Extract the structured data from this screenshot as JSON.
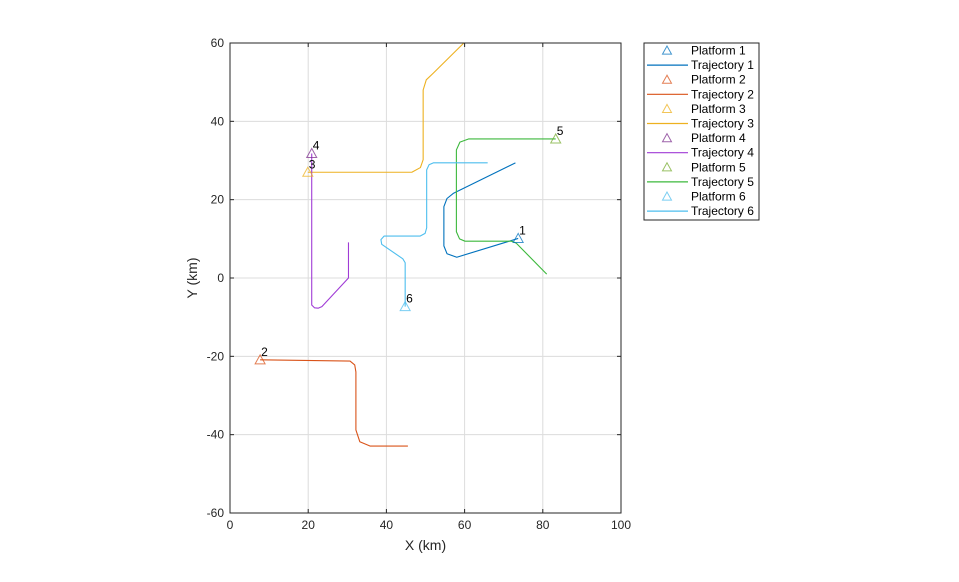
{
  "chart_data": {
    "type": "line",
    "title": "",
    "xlabel": "X (km)",
    "ylabel": "Y (km)",
    "xlim": [
      0,
      100
    ],
    "ylim": [
      -60,
      60
    ],
    "xticks": [
      0,
      20,
      40,
      60,
      80,
      100
    ],
    "yticks": [
      -60,
      -40,
      -20,
      0,
      20,
      40,
      60
    ],
    "grid": true,
    "legend_placement": "outside-top-right",
    "platforms": [
      {
        "name": "Platform 1",
        "label": "1",
        "x": 73.7,
        "y": 10.1,
        "color": "#0072BD"
      },
      {
        "name": "Platform 2",
        "label": "2",
        "x": 7.7,
        "y": -20.9,
        "color": "#D95319"
      },
      {
        "name": "Platform 3",
        "label": "3",
        "x": 19.9,
        "y": 27.0,
        "color": "#EDB120"
      },
      {
        "name": "Platform 4",
        "label": "4",
        "x": 20.9,
        "y": 31.8,
        "color": "#7E2F8E"
      },
      {
        "name": "Platform 5",
        "label": "5",
        "x": 83.3,
        "y": 35.5,
        "color": "#77AC30"
      },
      {
        "name": "Platform 6",
        "label": "6",
        "x": 44.8,
        "y": -7.3,
        "color": "#4DBEEE"
      }
    ],
    "series": [
      {
        "name": "Trajectory 1",
        "color": "#0072BD",
        "points": [
          [
            73.7,
            10.1
          ],
          [
            58,
            5.3
          ],
          [
            55.5,
            6.2
          ],
          [
            54.7,
            8.2
          ],
          [
            54.7,
            18.2
          ],
          [
            55.5,
            20.3
          ],
          [
            57.1,
            21.6
          ],
          [
            73,
            29.4
          ]
        ]
      },
      {
        "name": "Trajectory 2",
        "color": "#D95319",
        "points": [
          [
            7.7,
            -20.9
          ],
          [
            30.7,
            -21.2
          ],
          [
            31.9,
            -22.2
          ],
          [
            32.2,
            -24
          ],
          [
            32.2,
            -38.8
          ],
          [
            33.2,
            -41.8
          ],
          [
            35.8,
            -42.9
          ],
          [
            45.5,
            -42.9
          ]
        ]
      },
      {
        "name": "Trajectory 3",
        "color": "#EDB120",
        "points": [
          [
            19.9,
            27
          ],
          [
            46.5,
            27
          ],
          [
            48.7,
            28.2
          ],
          [
            49.4,
            30.2
          ],
          [
            49.4,
            48
          ],
          [
            50.2,
            50.6
          ],
          [
            52,
            52.3
          ],
          [
            59.8,
            60
          ]
        ]
      },
      {
        "name": "Trajectory 4",
        "color": "#A03CD6",
        "points": [
          [
            20.9,
            31.8
          ],
          [
            20.9,
            -6.9
          ],
          [
            21.6,
            -7.6
          ],
          [
            22.6,
            -7.7
          ],
          [
            23.5,
            -7.3
          ],
          [
            30.3,
            0
          ],
          [
            30.3,
            9.1
          ]
        ]
      },
      {
        "name": "Trajectory 5",
        "color": "#3CB83C",
        "points": [
          [
            83.3,
            35.5
          ],
          [
            61,
            35.5
          ],
          [
            58.8,
            34.7
          ],
          [
            57.9,
            32.7
          ],
          [
            57.9,
            11.8
          ],
          [
            58.7,
            10
          ],
          [
            60.1,
            9.4
          ],
          [
            72,
            9.4
          ],
          [
            73.2,
            8.9
          ],
          [
            81,
            1
          ]
        ]
      },
      {
        "name": "Trajectory 6",
        "color": "#4DBEEE",
        "points": [
          [
            44.8,
            -7.3
          ],
          [
            44.8,
            3.9
          ],
          [
            44.2,
            4.9
          ],
          [
            38.8,
            8.6
          ],
          [
            38.6,
            9.8
          ],
          [
            39.4,
            10.7
          ],
          [
            48.6,
            10.7
          ],
          [
            49.9,
            11.4
          ],
          [
            50.3,
            12.8
          ],
          [
            50.3,
            27.6
          ],
          [
            50.9,
            28.9
          ],
          [
            52,
            29.4
          ],
          [
            65.9,
            29.4
          ]
        ]
      }
    ],
    "legend": [
      "Platform 1",
      "Trajectory 1",
      "Platform 2",
      "Trajectory 2",
      "Platform 3",
      "Trajectory 3",
      "Platform 4",
      "Trajectory 4",
      "Platform 5",
      "Trajectory 5",
      "Platform 6",
      "Trajectory 6"
    ]
  }
}
